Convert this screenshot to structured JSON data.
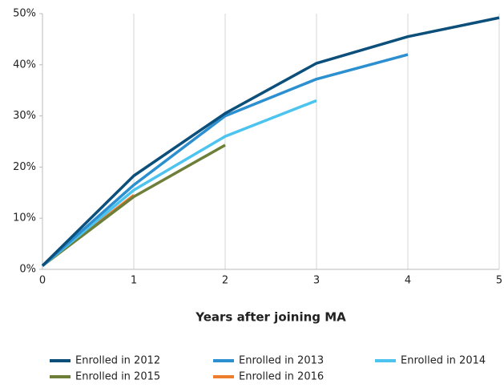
{
  "chart_data": {
    "type": "line",
    "x_label": "Years after joining MA",
    "x": [
      0,
      1,
      2,
      3,
      4,
      5
    ],
    "series": [
      {
        "name": "Enrolled in 2012",
        "color": "#0b4f7a",
        "values": [
          0.7,
          18.3,
          30.5,
          40.3,
          45.5,
          49.2
        ]
      },
      {
        "name": "Enrolled in 2013",
        "color": "#2b8fd0",
        "values": [
          0.7,
          16.5,
          30,
          37.2,
          42,
          null
        ]
      },
      {
        "name": "Enrolled in 2014",
        "color": "#4dc4ef",
        "values": [
          0.7,
          15.5,
          26,
          33,
          null,
          null
        ]
      },
      {
        "name": "Enrolled in 2015",
        "color": "#6e7f3a",
        "values": [
          0.7,
          14.2,
          24.3,
          null,
          null,
          null
        ]
      },
      {
        "name": "Enrolled in 2016",
        "color": "#ef7d2e",
        "values": [
          0.7,
          14.5,
          null,
          null,
          null,
          null
        ]
      }
    ],
    "xlim": [
      0,
      5
    ],
    "xticks": [
      0,
      1,
      2,
      3,
      4,
      5
    ],
    "ylim": [
      0,
      50
    ],
    "yticks": [
      {
        "value": 0,
        "label": "0%"
      },
      {
        "value": 10,
        "label": "10%"
      },
      {
        "value": 20,
        "label": "20%"
      },
      {
        "value": 30,
        "label": "30%"
      },
      {
        "value": 40,
        "label": "40%"
      },
      {
        "value": 50,
        "label": "50%"
      }
    ],
    "grid": "x",
    "legend": "bottom"
  }
}
